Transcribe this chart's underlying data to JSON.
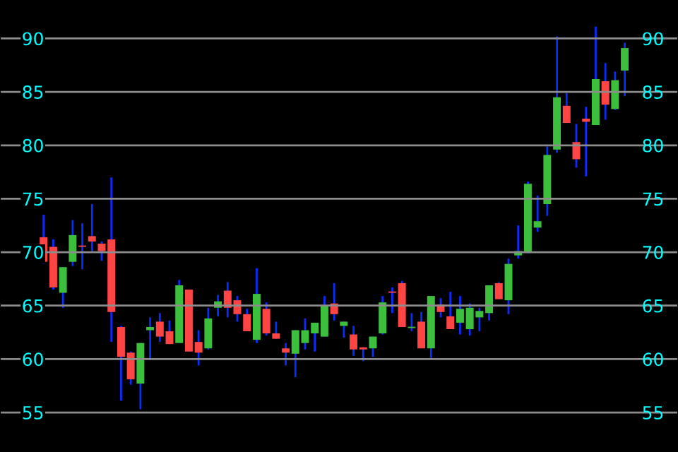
{
  "chart_data": {
    "type": "candlestick",
    "categories": [
      null,
      null,
      null,
      null,
      null,
      null,
      null,
      null,
      null,
      null,
      null,
      null,
      null,
      null,
      null,
      null,
      null,
      null,
      null,
      null,
      null,
      null,
      null,
      null,
      null,
      null,
      null,
      null,
      null,
      null,
      null,
      null,
      null,
      null,
      null,
      null,
      null,
      null,
      null,
      null,
      null,
      null,
      null,
      null,
      null,
      null,
      null,
      null,
      null,
      null,
      null,
      null,
      null,
      null,
      null,
      null,
      null,
      null,
      null,
      null,
      null
    ],
    "ohlc": [
      [
        71.4,
        73.5,
        68.9,
        69.1
      ],
      [
        70.5,
        71.2,
        66.5,
        66.7
      ],
      [
        66.2,
        68.6,
        64.8,
        68.6
      ],
      [
        69.1,
        73.0,
        68.7,
        71.6
      ],
      [
        70.6,
        72.7,
        68.4,
        70.5
      ],
      [
        71.5,
        74.5,
        70.1,
        71.0
      ],
      [
        70.8,
        71.0,
        69.2,
        70.1
      ],
      [
        71.2,
        77.0,
        61.6,
        64.4
      ],
      [
        63.0,
        63.1,
        56.1,
        60.2
      ],
      [
        60.6,
        60.7,
        57.6,
        58.1
      ],
      [
        57.7,
        61.5,
        55.3,
        61.5
      ],
      [
        62.7,
        63.9,
        59.9,
        63.0
      ],
      [
        63.5,
        64.3,
        61.6,
        62.1
      ],
      [
        62.6,
        63.6,
        61.4,
        61.4
      ],
      [
        61.5,
        67.4,
        61.5,
        66.9
      ],
      [
        66.5,
        66.5,
        60.7,
        60.7
      ],
      [
        61.6,
        62.7,
        59.4,
        60.6
      ],
      [
        61.0,
        64.8,
        60.9,
        63.8
      ],
      [
        64.8,
        66.0,
        64.0,
        65.4
      ],
      [
        66.4,
        67.2,
        63.9,
        64.8
      ],
      [
        65.5,
        65.9,
        63.5,
        64.2
      ],
      [
        64.2,
        64.7,
        62.6,
        62.6
      ],
      [
        61.8,
        68.5,
        61.5,
        66.1
      ],
      [
        64.7,
        65.3,
        62.2,
        62.4
      ],
      [
        62.4,
        63.5,
        61.9,
        61.9
      ],
      [
        61.0,
        61.5,
        59.4,
        60.6
      ],
      [
        60.5,
        62.7,
        58.3,
        62.7
      ],
      [
        61.5,
        63.8,
        60.9,
        62.7
      ],
      [
        62.4,
        63.4,
        60.7,
        63.4
      ],
      [
        62.1,
        65.9,
        62.1,
        65.0
      ],
      [
        65.2,
        67.1,
        63.6,
        64.2
      ],
      [
        63.1,
        63.5,
        62.0,
        63.5
      ],
      [
        62.3,
        63.1,
        60.3,
        60.9
      ],
      [
        61.1,
        61.1,
        59.8,
        60.9
      ],
      [
        61.0,
        62.1,
        60.2,
        62.1
      ],
      [
        62.4,
        65.9,
        62.3,
        65.3
      ],
      [
        66.3,
        66.7,
        64.3,
        66.2
      ],
      [
        67.1,
        67.3,
        63.0,
        63.0
      ],
      [
        62.9,
        64.3,
        62.6,
        63.0
      ],
      [
        63.5,
        64.4,
        61.0,
        61.0
      ],
      [
        61.0,
        65.9,
        60.1,
        65.9
      ],
      [
        65.1,
        65.7,
        63.9,
        64.4
      ],
      [
        64.0,
        66.3,
        62.8,
        62.8
      ],
      [
        63.4,
        65.9,
        62.3,
        64.7
      ],
      [
        62.8,
        65.2,
        62.2,
        64.8
      ],
      [
        63.9,
        64.8,
        62.6,
        64.5
      ],
      [
        64.3,
        66.9,
        63.6,
        66.9
      ],
      [
        67.1,
        67.2,
        65.6,
        65.6
      ],
      [
        65.5,
        69.4,
        64.2,
        68.9
      ],
      [
        69.7,
        72.5,
        69.4,
        70.1
      ],
      [
        70.0,
        76.6,
        69.9,
        76.4
      ],
      [
        72.3,
        75.3,
        71.9,
        72.9
      ],
      [
        74.5,
        79.9,
        73.4,
        79.1
      ],
      [
        79.6,
        90.2,
        79.3,
        84.5
      ],
      [
        83.7,
        84.9,
        82.1,
        82.1
      ],
      [
        80.3,
        82.0,
        77.9,
        78.7
      ],
      [
        82.5,
        83.6,
        77.1,
        82.2
      ],
      [
        81.9,
        91.1,
        81.9,
        86.2
      ],
      [
        86.0,
        87.7,
        82.4,
        83.8
      ],
      [
        83.4,
        86.9,
        83.3,
        86.1
      ],
      [
        87.0,
        89.6,
        84.6,
        89.1
      ]
    ],
    "ylim": [
      51.3,
      93.6
    ],
    "yticks": [
      55,
      60,
      65,
      70,
      75,
      80,
      85,
      90
    ],
    "y2lim": [
      51.3,
      93.6
    ],
    "y2ticks": [
      55,
      60,
      65,
      70,
      75,
      80,
      85,
      90
    ],
    "grid": "y",
    "tick_labels": "y"
  }
}
